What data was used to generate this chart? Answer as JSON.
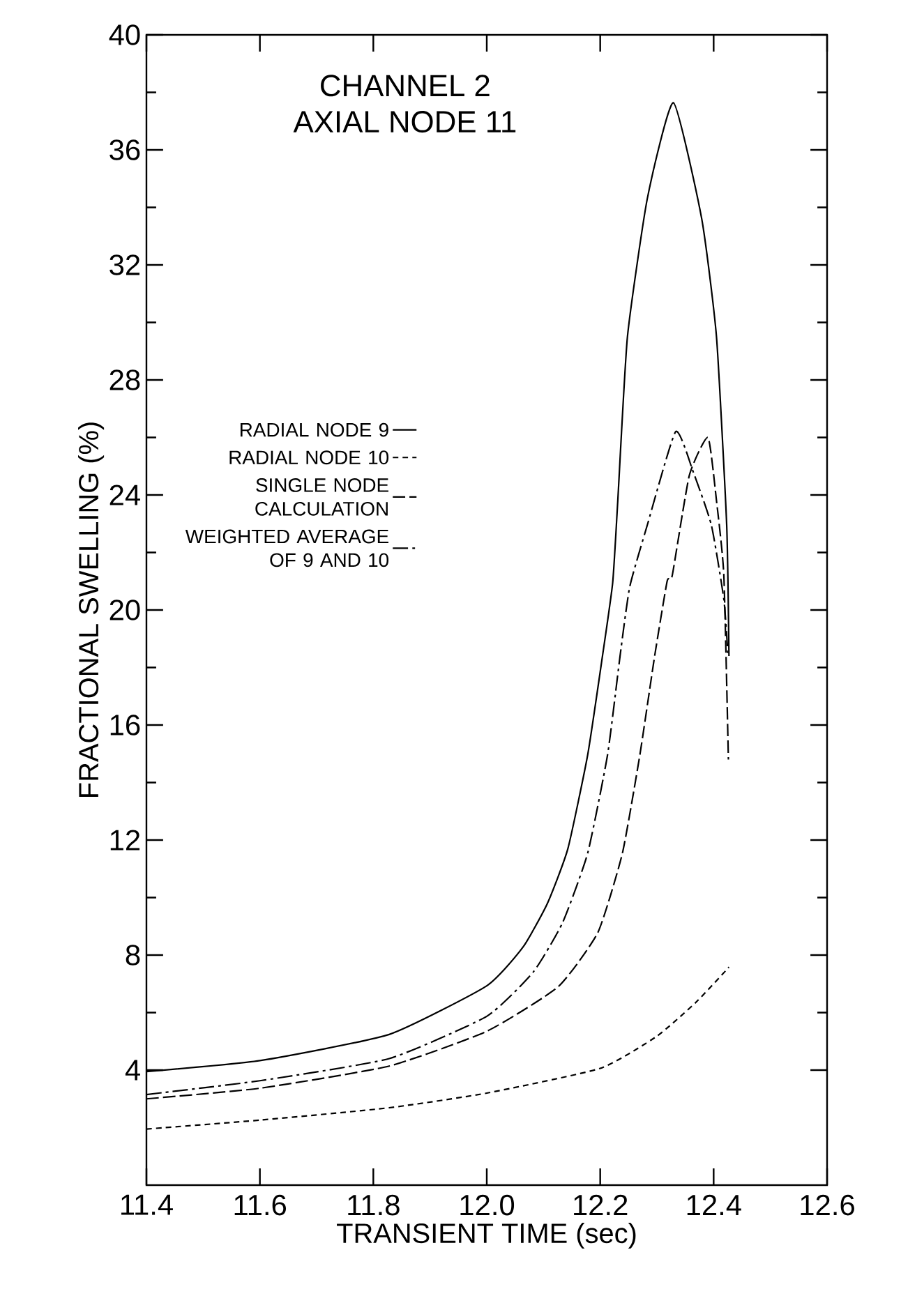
{
  "chart_data": {
    "type": "line",
    "title": "CHANNEL 2",
    "subtitle": "AXIAL NODE 11",
    "xlabel": "TRANSIENT TIME (sec)",
    "ylabel": "FRACTIONAL SWELLING (%)",
    "xlim": [
      11.4,
      12.6
    ],
    "xticks": [
      {
        "value": 11.4,
        "label": "11.4"
      },
      {
        "value": 11.6,
        "label": "11.6"
      },
      {
        "value": 11.8,
        "label": "11.8"
      },
      {
        "value": 12.0,
        "label": "12.0"
      },
      {
        "value": 12.2,
        "label": "12.2"
      },
      {
        "value": 12.4,
        "label": "12.4"
      },
      {
        "value": 12.6,
        "label": "12.6"
      }
    ],
    "ylim": [
      0,
      40
    ],
    "yticks": [
      4,
      8,
      12,
      16,
      20,
      24,
      28,
      32,
      36,
      40
    ],
    "grid": false,
    "legend": "left",
    "marker": "none",
    "series": [
      {
        "name": "RADIAL NODE 9",
        "color": "#000000",
        "line_style": "solid",
        "x": [
          11.4,
          11.6,
          11.828,
          12.0,
          12.064,
          12.107,
          12.143,
          12.178,
          12.204,
          12.222,
          12.231,
          12.248,
          12.283,
          12.329,
          12.379,
          12.405,
          12.423,
          12.427
        ],
        "values": [
          3.95,
          4.33,
          5.24,
          6.93,
          8.28,
          9.8,
          11.7,
          14.97,
          18.4,
          20.95,
          23.8,
          29.5,
          34.3,
          37.64,
          33.6,
          29.5,
          22.95,
          18.4
        ]
      },
      {
        "name": "RADIAL NODE 10",
        "color": "#000000",
        "line_style": "dotted",
        "x": [
          11.4,
          11.6,
          11.828,
          12.0,
          12.2,
          12.3,
          12.37,
          12.427
        ],
        "values": [
          1.95,
          2.26,
          2.69,
          3.2,
          4.06,
          5.18,
          6.38,
          7.58
        ]
      },
      {
        "name": "SINGLE NODE CALCULATION",
        "color": "#000000",
        "line_style": "dashed",
        "x": [
          11.4,
          11.6,
          11.828,
          12.0,
          12.126,
          12.196,
          12.239,
          12.27,
          12.296,
          12.318,
          12.327,
          12.357,
          12.39,
          12.405,
          12.418,
          12.426
        ],
        "values": [
          3.0,
          3.37,
          4.14,
          5.35,
          6.9,
          8.79,
          11.53,
          14.97,
          18.4,
          21.0,
          21.2,
          24.67,
          26.0,
          23.8,
          21.2,
          14.8
        ]
      },
      {
        "name": "WEIGHTED AVERAGE OF 9 AND 10",
        "color": "#000000",
        "line_style": "dashdot",
        "x": [
          11.4,
          11.6,
          11.828,
          12.0,
          12.082,
          12.134,
          12.178,
          12.213,
          12.235,
          12.252,
          12.283,
          12.333,
          12.364,
          12.396,
          12.418,
          12.425
        ],
        "values": [
          3.15,
          3.63,
          4.4,
          5.87,
          7.41,
          9.14,
          11.55,
          14.97,
          18.4,
          20.8,
          22.95,
          26.2,
          24.8,
          22.95,
          20.37,
          18.5
        ]
      }
    ]
  }
}
